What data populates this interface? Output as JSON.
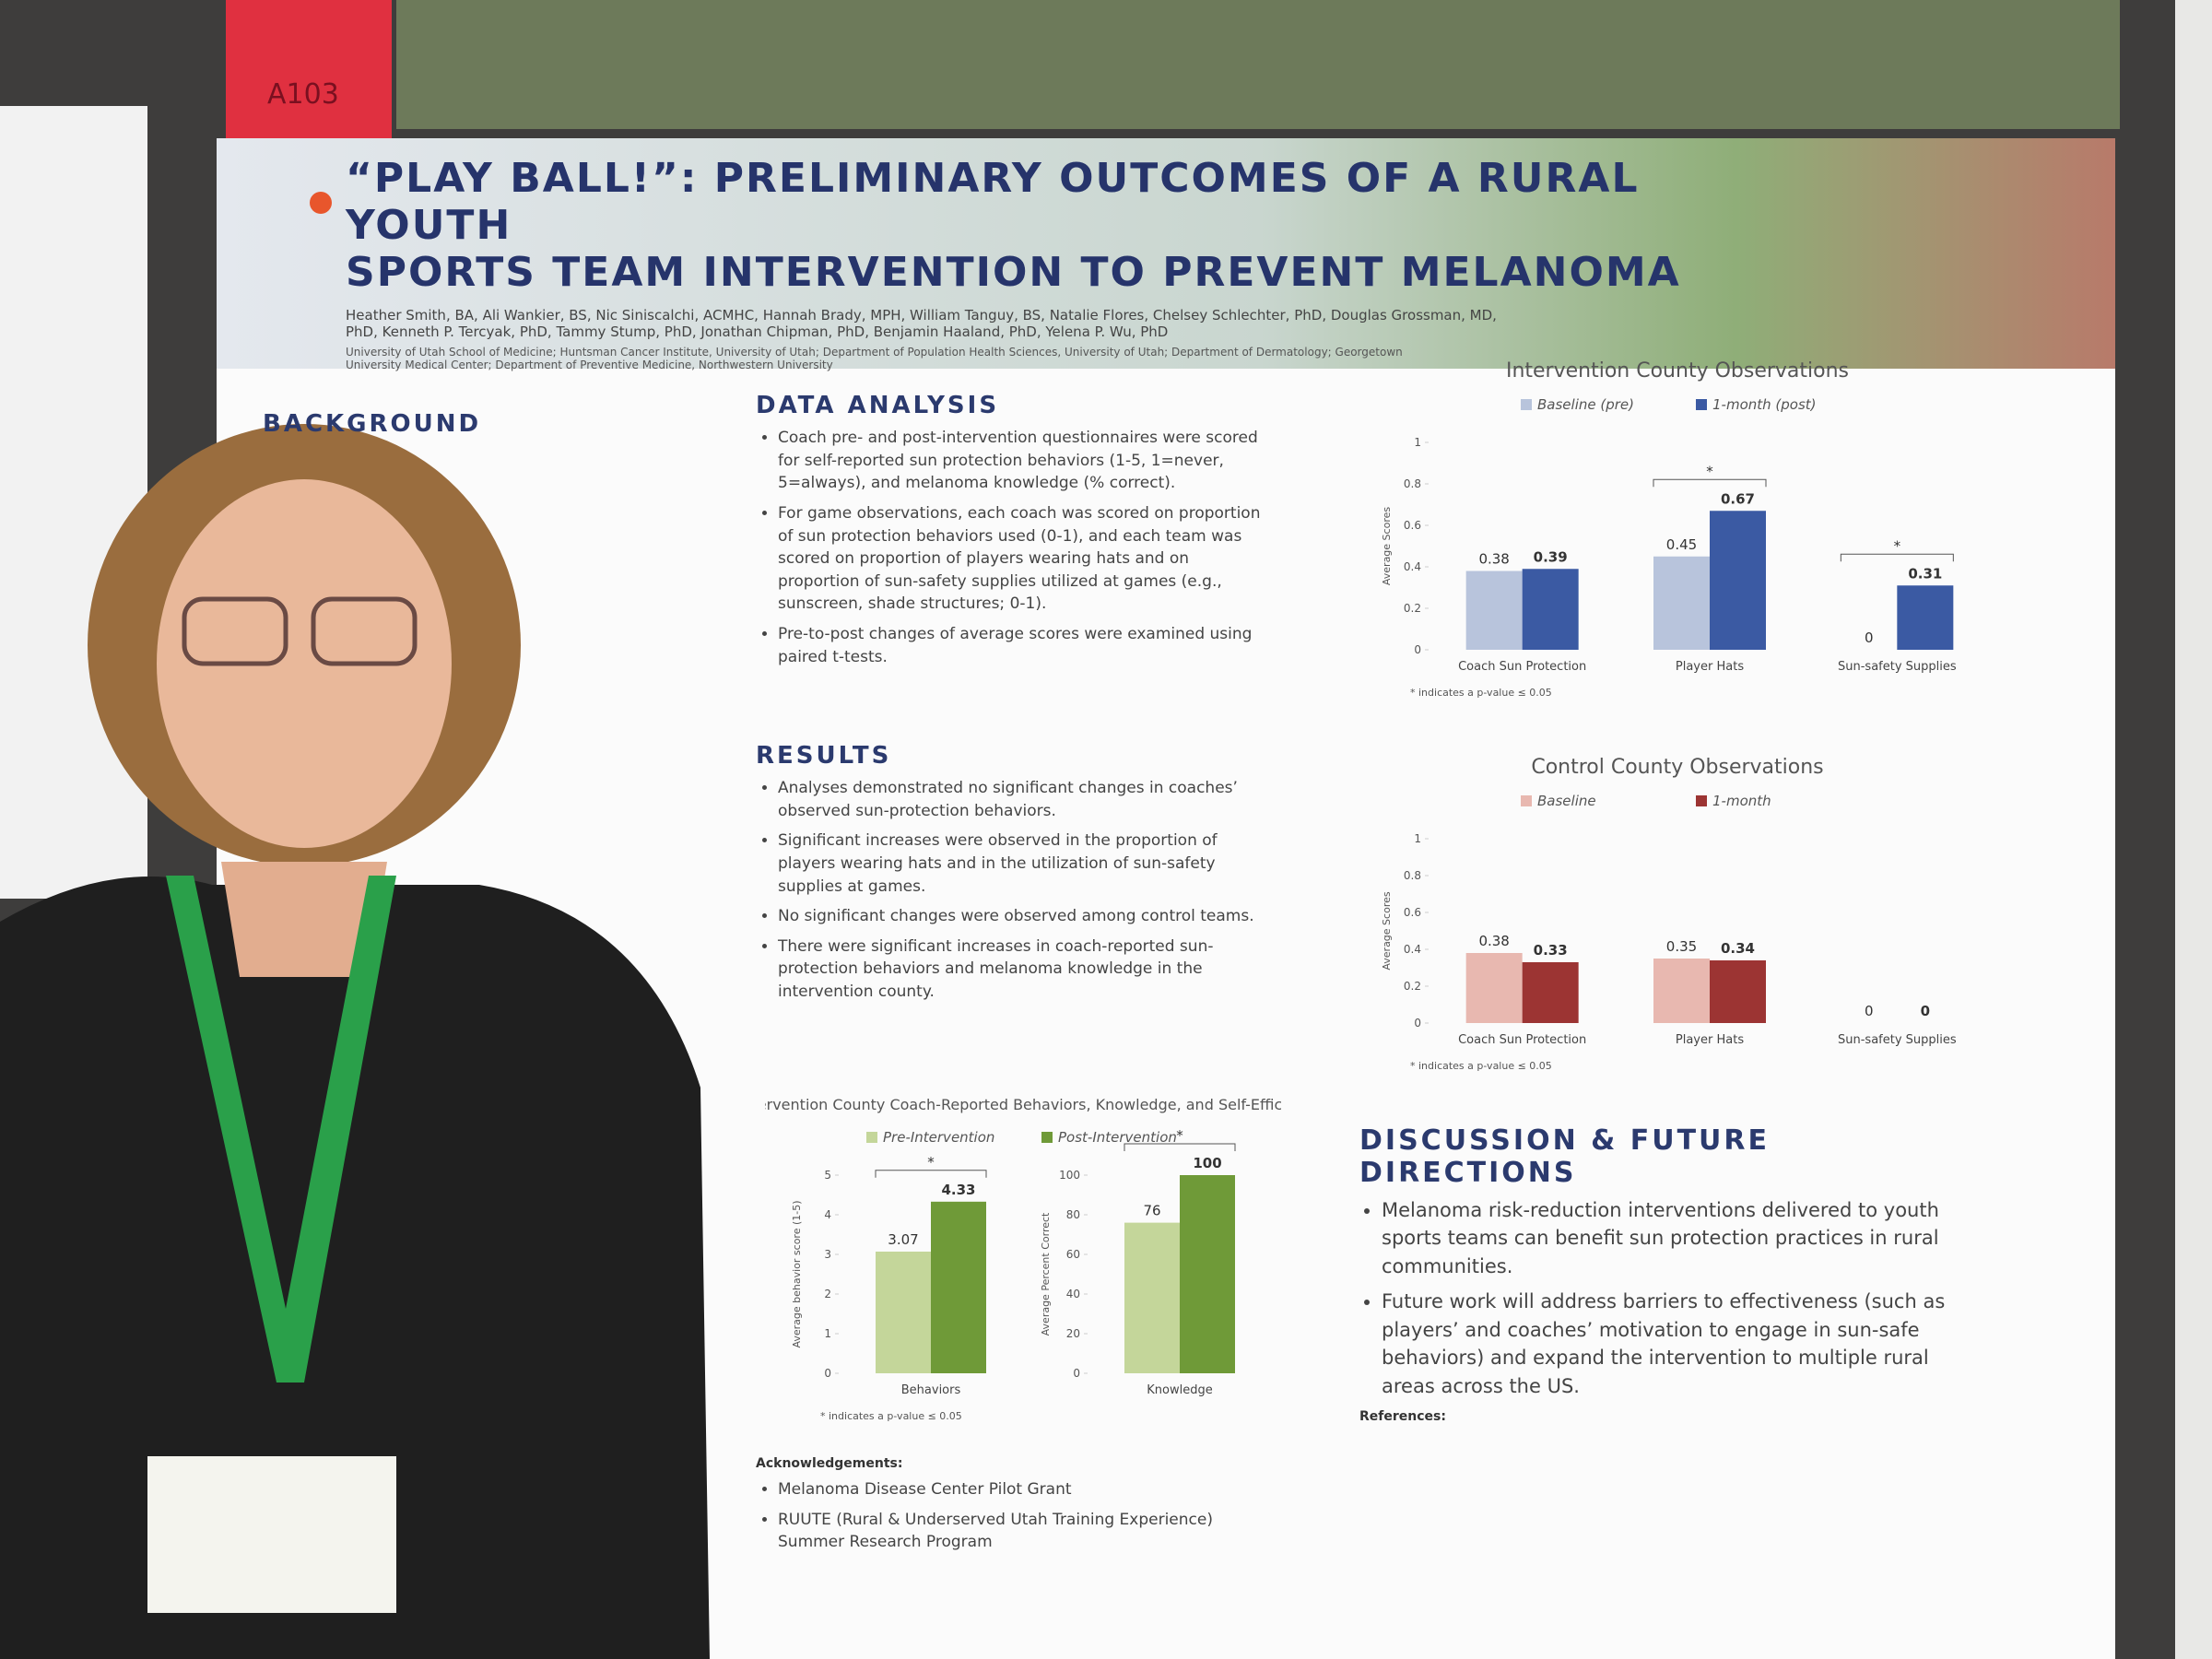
{
  "room": {
    "sign": "A103"
  },
  "poster": {
    "title": [
      "“PLAY BALL!”: PRELIMINARY OUTCOMES OF A RURAL YOUTH",
      "SPORTS TEAM INTERVENTION TO PREVENT MELANOMA"
    ],
    "authors": "Heather Smith, BA, Ali Wankier, BS, Nic Siniscalchi, ACMHC, Hannah Brady, MPH, William Tanguy, BS, Natalie Flores, Chelsey Schlechter, PhD, Douglas Grossman, MD, PhD, Kenneth P. Tercyak, PhD, Tammy Stump, PhD, Jonathan Chipman, PhD, Benjamin Haaland, PhD, Yelena P. Wu, PhD",
    "affiliations": "University of Utah School of Medicine; Huntsman Cancer Institute, University of Utah; Department of Population Health Sciences, University of Utah; Department of Dermatology; Georgetown University Medical Center; Department of Preventive Medicine, Northwestern University",
    "background": {
      "heading": "BACKGROUND"
    },
    "data_analysis": {
      "heading": "DATA ANALYSIS",
      "bullets": [
        "Coach pre- and post-intervention questionnaires were scored for self-reported sun protection behaviors (1-5, 1=never, 5=always), and melanoma knowledge (% correct).",
        "For game observations, each coach was scored on proportion of sun protection behaviors used (0-1), and each team was scored on proportion of players wearing hats and on proportion of sun-safety supplies utilized at games (e.g., sunscreen, shade structures; 0-1).",
        "Pre-to-post changes of average scores were examined using paired t-tests."
      ]
    },
    "results": {
      "heading": "RESULTS",
      "bullets": [
        "Analyses demonstrated no significant changes in coaches’ observed sun-protection behaviors.",
        "Significant increases were observed in the proportion of players wearing hats and in the utilization of sun-safety supplies at games.",
        "No significant changes were observed among control teams.",
        "There were significant increases in coach-reported sun-protection behaviors and melanoma knowledge in the intervention county."
      ]
    },
    "discussion": {
      "heading": "DISCUSSION & FUTURE DIRECTIONS",
      "bullets": [
        "Melanoma risk-reduction interventions delivered to youth sports teams can benefit sun protection practices in rural communities.",
        "Future work will address barriers to effectiveness (such as players’ and coaches’ motivation to engage in sun-safe behaviors) and expand the intervention to multiple rural areas across the US."
      ]
    },
    "references": {
      "heading": "References:"
    },
    "acknowledgements": {
      "heading": "Acknowledgements:",
      "items": [
        "Melanoma Disease Center Pilot Grant",
        "RUUTE (Rural & Underserved Utah Training Experience) Summer Research Program"
      ]
    },
    "charts": [
      {
        "title": "Intervention County Observations",
        "legend": [
          {
            "name": "Baseline (pre)",
            "color": "#b8c4dc"
          },
          {
            "name": "1-month (post)",
            "color": "#3b5aa3"
          }
        ],
        "note": "* indicates a p-value ≤ 0.05",
        "panels": [
          {
            "ylabel": "Average Scores",
            "ylim": [
              0,
              1
            ],
            "yticks": [
              0,
              0.2,
              0.4,
              0.6,
              0.8,
              1
            ],
            "categories": [
              "Coach Sun Protection",
              "Player Hats",
              "Sun-safety Supplies"
            ],
            "values": [
              [
                0.38,
                0.45,
                0
              ],
              [
                0.39,
                0.67,
                0.31
              ]
            ],
            "significance": [
              null,
              "*",
              "*"
            ]
          }
        ]
      },
      {
        "title": "Control County Observations",
        "legend": [
          {
            "name": "Baseline",
            "color": "#e8b8b0"
          },
          {
            "name": "1-month",
            "color": "#9c3433"
          }
        ],
        "note": "* indicates a p-value ≤ 0.05",
        "panels": [
          {
            "ylabel": "Average Scores",
            "ylim": [
              0,
              1
            ],
            "yticks": [
              0,
              0.2,
              0.4,
              0.6,
              0.8,
              1
            ],
            "categories": [
              "Coach Sun Protection",
              "Player Hats",
              "Sun-safety Supplies"
            ],
            "values": [
              [
                0.38,
                0.35,
                0
              ],
              [
                0.33,
                0.34,
                0
              ]
            ],
            "significance": [
              null,
              null,
              null
            ]
          }
        ]
      },
      {
        "title": "Intervention County Coach-Reported Behaviors, Knowledge, and Self-Efficacy",
        "legend": [
          {
            "name": "Pre-Intervention",
            "color": "#c4d69a"
          },
          {
            "name": "Post-Intervention",
            "color": "#6f9a38"
          }
        ],
        "note": "* indicates a p-value ≤ 0.05",
        "panels": [
          {
            "ylabel": "Average behavior score (1-5)",
            "ylim": [
              0,
              5
            ],
            "yticks": [
              0,
              1,
              2,
              3,
              4,
              5
            ],
            "categories": [
              "Behaviors"
            ],
            "values": [
              [
                3.07
              ],
              [
                4.33
              ]
            ],
            "significance": [
              "*"
            ]
          },
          {
            "ylabel": "Average Percent Correct",
            "ylim": [
              0,
              100
            ],
            "yticks": [
              0,
              20,
              40,
              60,
              80,
              100
            ],
            "categories": [
              "Knowledge"
            ],
            "values": [
              [
                76
              ],
              [
                100
              ]
            ],
            "significance": [
              "*"
            ]
          }
        ]
      }
    ]
  }
}
